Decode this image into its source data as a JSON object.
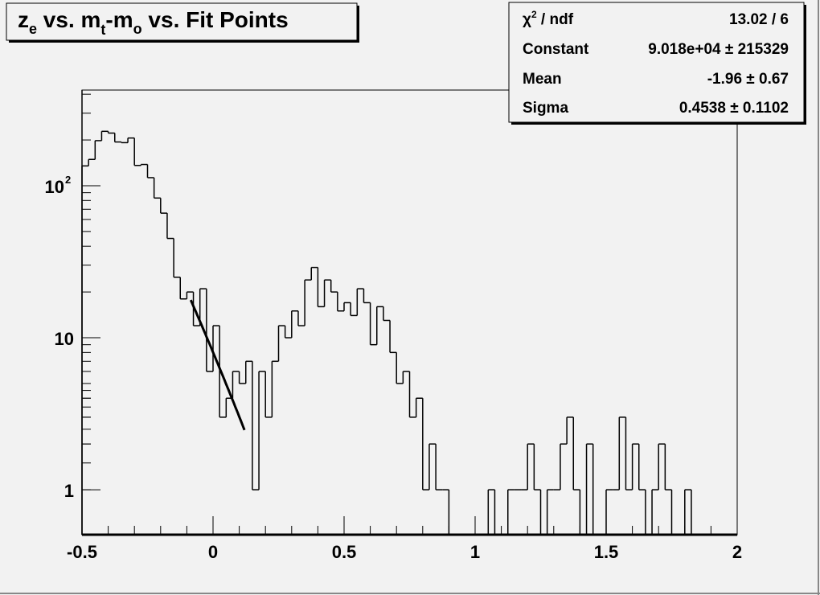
{
  "chart_data": {
    "type": "bar",
    "style": "step-histogram",
    "title": "z_e vs. m_t-m_o vs. Fit Points",
    "title_parts": {
      "z": "z",
      "z_sub": "e",
      "mid": " vs. m",
      "m_sub": "t",
      "dash": "-m",
      "o_sub": "o",
      "end": " vs. Fit Points"
    },
    "xlabel": "",
    "ylabel": "",
    "xlim": [
      -0.5,
      2.0
    ],
    "ylim": [
      0.506,
      426
    ],
    "y_scale": "log",
    "grid": false,
    "x_bin_width": 0.025,
    "x_tick_labels": [
      "-0.5",
      "0",
      "0.5",
      "1",
      "1.5",
      "2"
    ],
    "x_ticks": [
      -0.5,
      0,
      0.5,
      1,
      1.5,
      2
    ],
    "y_tick_labels": [
      {
        "value": 1,
        "text": "1"
      },
      {
        "value": 10,
        "text": "10"
      },
      {
        "value": 100,
        "base": "10",
        "exp": "2"
      }
    ],
    "values": [
      135,
      149,
      198,
      228,
      222,
      194,
      192,
      206,
      136,
      138,
      113,
      83,
      66,
      45,
      25,
      18,
      20,
      12,
      21,
      6,
      12,
      3,
      4,
      6,
      5,
      7,
      1,
      6,
      3,
      7,
      12,
      10,
      15,
      12,
      24,
      29,
      16,
      24,
      20,
      15,
      17,
      14,
      21,
      17,
      9,
      16,
      13,
      8,
      5,
      6,
      3,
      4,
      1,
      2,
      1,
      1,
      0,
      0,
      0,
      0,
      0,
      0,
      1,
      0,
      0,
      1,
      1,
      1,
      2,
      1,
      0,
      1,
      1,
      2,
      3,
      1,
      0,
      2,
      0,
      0,
      1,
      1,
      3,
      1,
      2,
      1,
      0,
      1,
      2,
      1,
      0,
      0,
      1,
      0,
      0,
      0,
      0,
      0,
      0,
      0
    ],
    "fit": {
      "function": "gaus",
      "range": [
        -0.085,
        0.12
      ],
      "constant": 90180,
      "mean": -1.96,
      "sigma": 0.4538,
      "color": "#000000"
    },
    "line_color": "#000000",
    "background": "#f2f2f2",
    "stats_box": {
      "rows": [
        {
          "label": "χ² / ndf",
          "label_base": "χ",
          "label_sup": "2",
          "label_rest": " / ndf",
          "value": "13.02 / 6"
        },
        {
          "label": "Constant",
          "value": "9.018e+04 ± 215329"
        },
        {
          "label": "Mean",
          "value": "-1.96 ± 0.67"
        },
        {
          "label": "Sigma",
          "value": "0.4538 ± 0.1102"
        }
      ],
      "placement": "top-right"
    }
  }
}
